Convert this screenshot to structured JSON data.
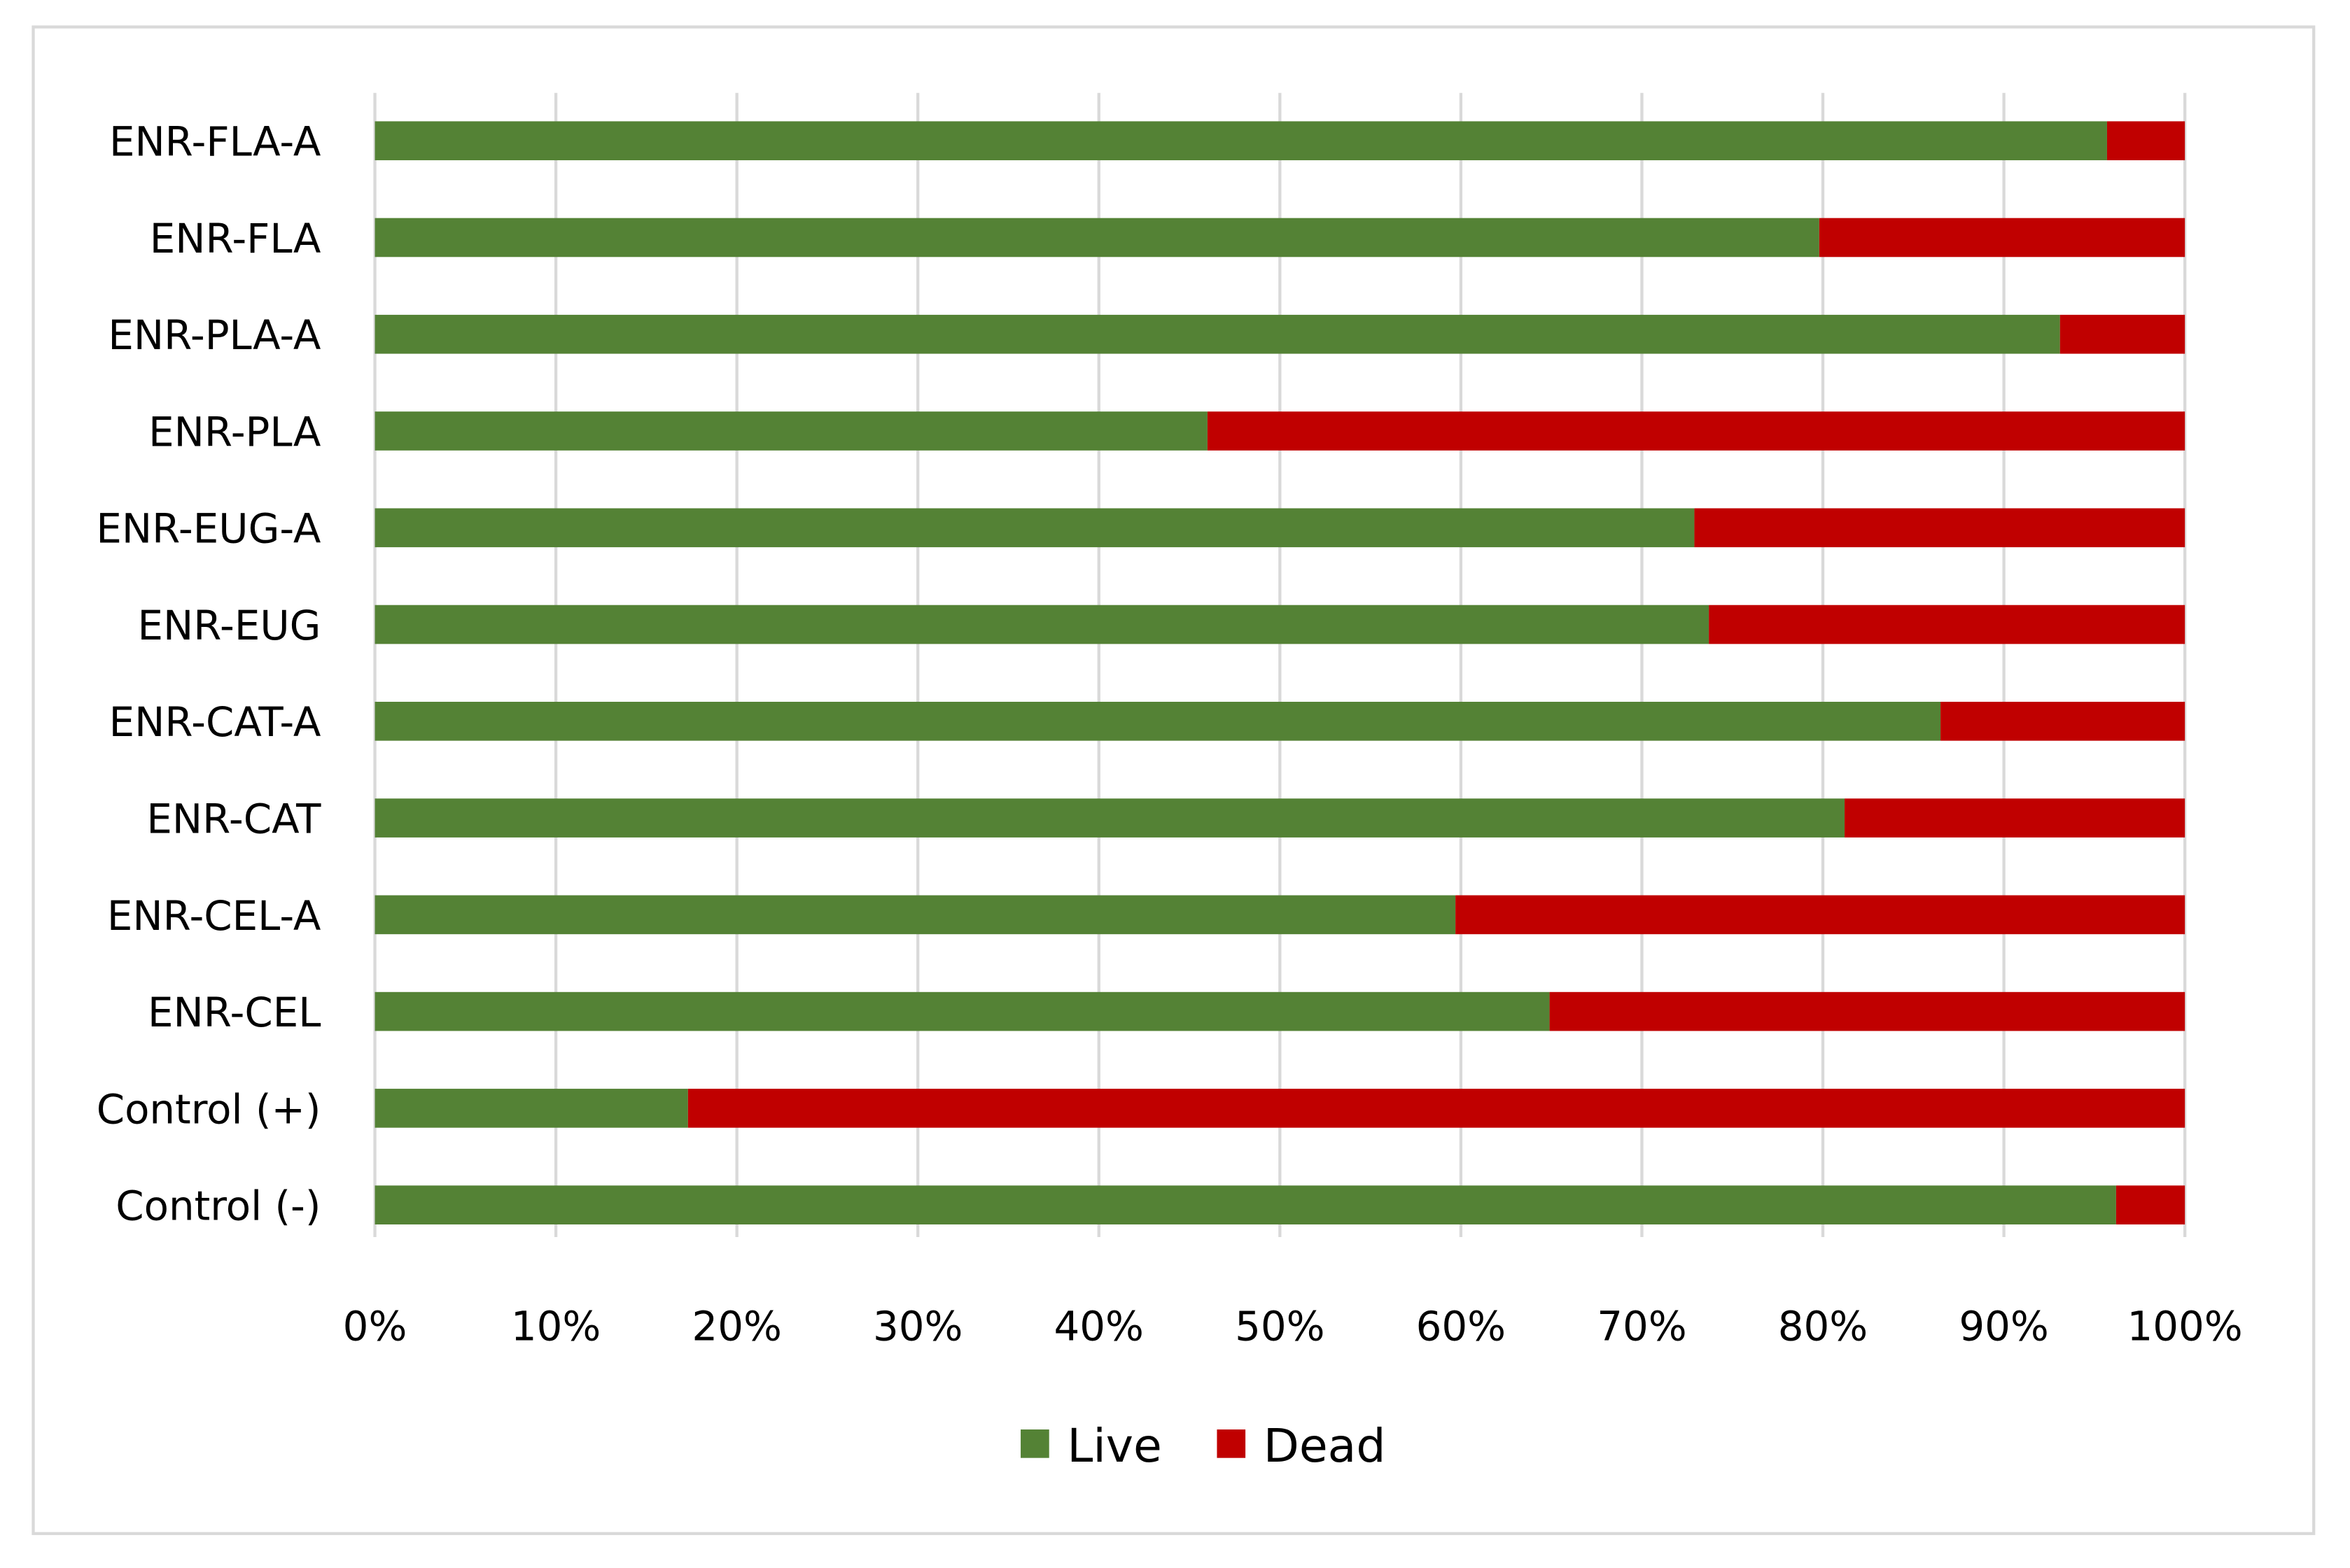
{
  "chart_data": {
    "type": "bar",
    "orientation": "horizontal",
    "stacked": "percent",
    "title": "",
    "xlabel": "",
    "ylabel": "",
    "categories": [
      "ENR-FLA-A",
      "ENR-FLA",
      "ENR-PLA-A",
      "ENR-PLA",
      "ENR-EUG-A",
      "ENR-EUG",
      "ENR-CAT-A",
      "ENR-CAT",
      "ENR-CEL-A",
      "ENR-CEL",
      "Control (+)",
      "Control (-)"
    ],
    "series": [
      {
        "name": "Live",
        "color": "#548235",
        "values": [
          95.7,
          79.8,
          93.1,
          46.0,
          72.9,
          73.7,
          86.5,
          81.2,
          59.7,
          64.9,
          17.3,
          96.2
        ]
      },
      {
        "name": "Dead",
        "color": "#c00000",
        "values": [
          4.3,
          20.2,
          6.9,
          54.0,
          27.1,
          26.3,
          13.5,
          18.8,
          40.3,
          35.1,
          82.7,
          3.8
        ]
      }
    ],
    "xlim": [
      0,
      100
    ],
    "xticks": [
      "0%",
      "10%",
      "20%",
      "30%",
      "40%",
      "50%",
      "60%",
      "70%",
      "80%",
      "90%",
      "100%"
    ],
    "grid": "vertical",
    "legend": {
      "position": "bottom",
      "entries": [
        "Live",
        "Dead"
      ]
    }
  }
}
